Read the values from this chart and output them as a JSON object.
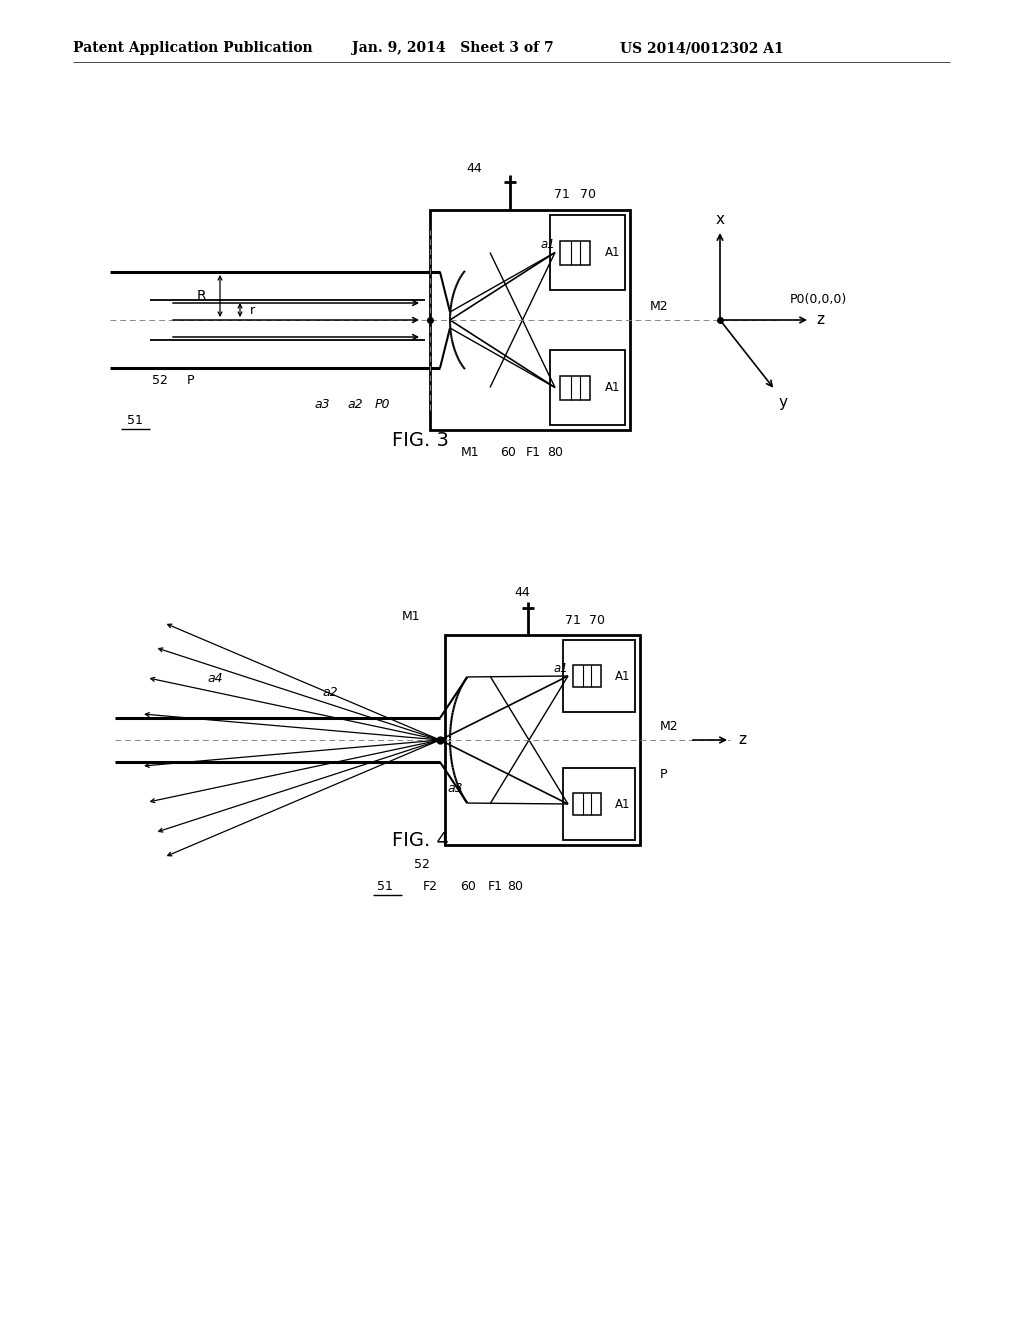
{
  "background_color": "#ffffff",
  "header_left": "Patent Application Publication",
  "header_center": "Jan. 9, 2014   Sheet 3 of 7",
  "header_right": "US 2014/0012302 A1",
  "fig3_caption": "FIG. 3",
  "fig4_caption": "FIG. 4"
}
